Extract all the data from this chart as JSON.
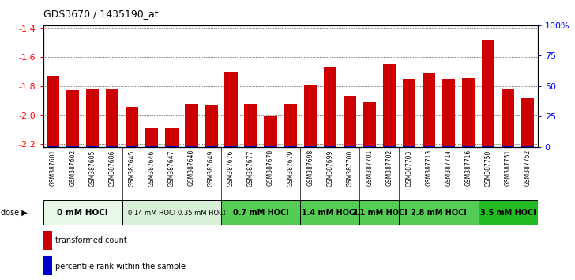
{
  "title": "GDS3670 / 1435190_at",
  "samples": [
    "GSM387601",
    "GSM387602",
    "GSM387605",
    "GSM387606",
    "GSM387645",
    "GSM387646",
    "GSM387647",
    "GSM387648",
    "GSM387649",
    "GSM387676",
    "GSM387677",
    "GSM387678",
    "GSM387679",
    "GSM387698",
    "GSM387699",
    "GSM387700",
    "GSM387701",
    "GSM387702",
    "GSM387703",
    "GSM387713",
    "GSM387714",
    "GSM387716",
    "GSM387750",
    "GSM387751",
    "GSM387752"
  ],
  "red_values": [
    -1.73,
    -1.83,
    -1.82,
    -1.82,
    -1.94,
    -2.09,
    -2.09,
    -1.92,
    -1.93,
    -1.7,
    -1.92,
    -2.01,
    -1.92,
    -1.79,
    -1.67,
    -1.87,
    -1.91,
    -1.65,
    -1.75,
    -1.71,
    -1.75,
    -1.74,
    -1.48,
    -1.82,
    -1.88
  ],
  "blue_percentiles": [
    5,
    10,
    6,
    7,
    5,
    7,
    7,
    8,
    10,
    9,
    7,
    8,
    5,
    11,
    11,
    5,
    5,
    9,
    7,
    7,
    9,
    7,
    11,
    7,
    5
  ],
  "dose_groups": [
    {
      "label": "0 mM HOCl",
      "start": 0,
      "end": 4,
      "color": "#e8f8e8",
      "fontsize": 7.5,
      "bold": true
    },
    {
      "label": "0.14 mM HOCl",
      "start": 4,
      "end": 7,
      "color": "#d8f0d8",
      "fontsize": 6,
      "bold": false
    },
    {
      "label": "0.35 mM HOCl",
      "start": 7,
      "end": 9,
      "color": "#d8f0d8",
      "fontsize": 6,
      "bold": false
    },
    {
      "label": "0.7 mM HOCl",
      "start": 9,
      "end": 13,
      "color": "#55cc55",
      "fontsize": 7,
      "bold": true
    },
    {
      "label": "1.4 mM HOCl",
      "start": 13,
      "end": 16,
      "color": "#55cc55",
      "fontsize": 7,
      "bold": true
    },
    {
      "label": "2.1 mM HOCl",
      "start": 16,
      "end": 18,
      "color": "#55cc55",
      "fontsize": 7,
      "bold": true
    },
    {
      "label": "2.8 mM HOCl",
      "start": 18,
      "end": 22,
      "color": "#55cc55",
      "fontsize": 7,
      "bold": true
    },
    {
      "label": "3.5 mM HOCl",
      "start": 22,
      "end": 25,
      "color": "#22bb22",
      "fontsize": 7,
      "bold": true
    }
  ],
  "ylim": [
    -2.22,
    -1.38
  ],
  "yticks_left": [
    -2.2,
    -2.0,
    -1.8,
    -1.6,
    -1.4
  ],
  "yticks_right": [
    0,
    25,
    50,
    75,
    100
  ],
  "right_tick_labels": [
    "0",
    "25",
    "50",
    "75",
    "100%"
  ],
  "bar_color": "#cc0000",
  "blue_color": "#0000cc",
  "bg_color": "#ffffff",
  "legend_red": "transformed count",
  "legend_blue": "percentile rank within the sample"
}
